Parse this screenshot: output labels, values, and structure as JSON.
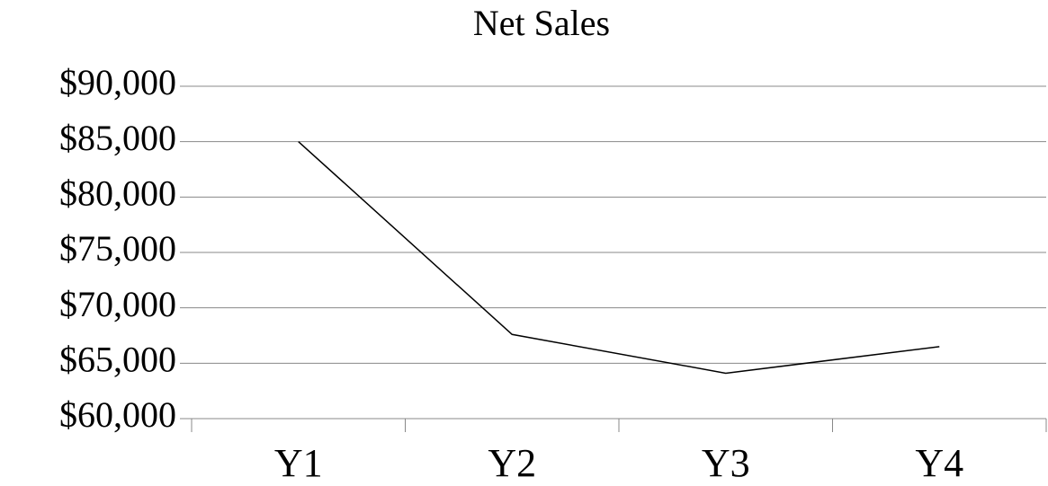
{
  "chart_data": {
    "type": "line",
    "title": "Net Sales",
    "categories": [
      "Y1",
      "Y2",
      "Y3",
      "Y4"
    ],
    "series": [
      {
        "name": "Net Sales",
        "color": "#000000",
        "values": [
          85000,
          67600,
          64100,
          66500
        ]
      }
    ],
    "ylim": [
      60000,
      90000
    ],
    "yticks": [
      {
        "value": 60000,
        "label": "$60,000"
      },
      {
        "value": 65000,
        "label": "$65,000"
      },
      {
        "value": 70000,
        "label": "$70,000"
      },
      {
        "value": 75000,
        "label": "$75,000"
      },
      {
        "value": 80000,
        "label": "$80,000"
      },
      {
        "value": 85000,
        "label": "$85,000"
      },
      {
        "value": 90000,
        "label": "$90,000"
      }
    ],
    "grid": true
  }
}
